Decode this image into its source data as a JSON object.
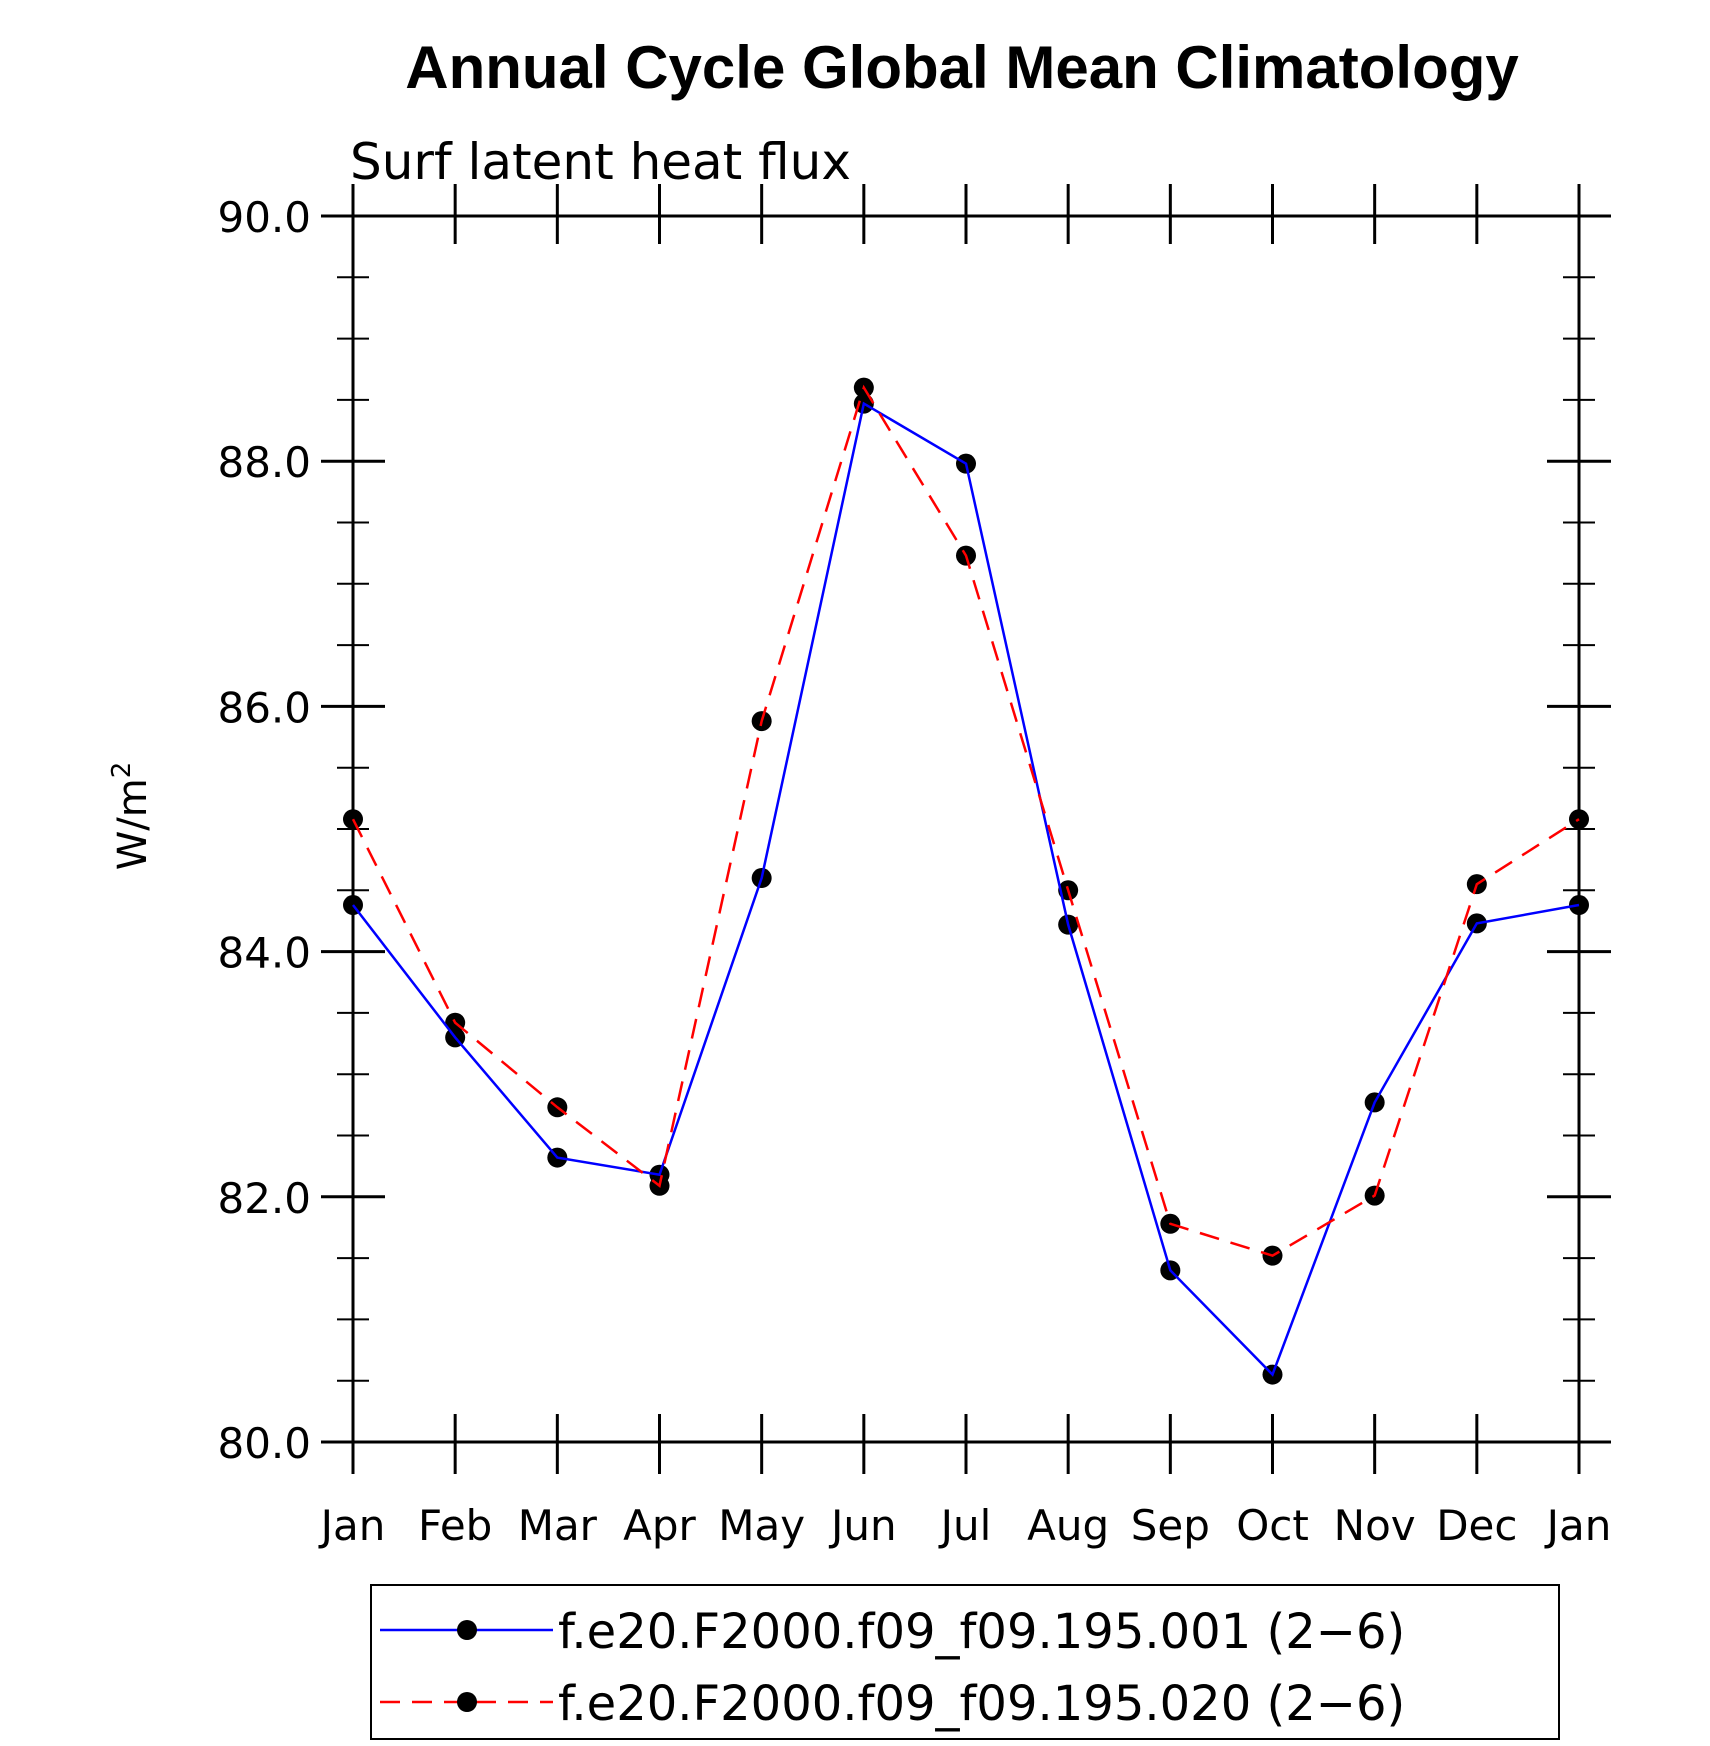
{
  "chart_data": {
    "type": "line",
    "title": "Annual Cycle Global Mean Climatology",
    "subtitle": "Surf latent heat flux",
    "ylabel": "W/m",
    "ylabel_sup": "2",
    "xlabel": "",
    "categories": [
      "Jan",
      "Feb",
      "Mar",
      "Apr",
      "May",
      "Jun",
      "Jul",
      "Aug",
      "Sep",
      "Oct",
      "Nov",
      "Dec",
      "Jan"
    ],
    "ylim": [
      80.0,
      90.0
    ],
    "y_major_ticks": [
      80.0,
      82.0,
      84.0,
      86.0,
      88.0,
      90.0
    ],
    "y_tick_labels": [
      "80.0",
      "82.0",
      "84.0",
      "86.0",
      "88.0",
      "90.0"
    ],
    "y_minor_step": 0.5,
    "grid": false,
    "legend_position": "bottom",
    "series": [
      {
        "name": "f.e20.F2000.f09_f09.195.001 (2−6)",
        "color": "#0000ff",
        "line_style": "solid",
        "marker": "filled-circle",
        "values": [
          84.38,
          83.3,
          82.32,
          82.18,
          84.6,
          88.47,
          87.98,
          84.22,
          81.4,
          80.55,
          82.77,
          84.23,
          84.38
        ]
      },
      {
        "name": "f.e20.F2000.f09_f09.195.020 (2−6)",
        "color": "#ff0000",
        "line_style": "dashed",
        "marker": "filled-circle",
        "values": [
          85.08,
          83.42,
          82.73,
          82.09,
          85.88,
          88.6,
          87.23,
          84.5,
          81.78,
          81.52,
          82.01,
          84.55,
          85.08
        ]
      }
    ]
  }
}
